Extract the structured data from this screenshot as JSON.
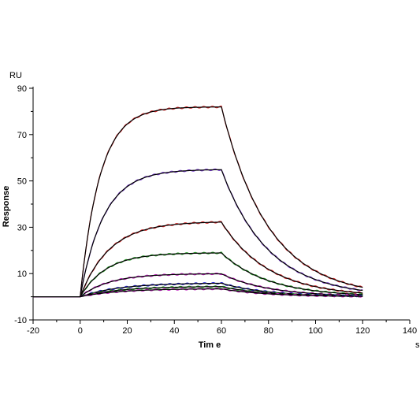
{
  "chart_data": {
    "type": "line",
    "title": "",
    "xlabel": "Tim e",
    "ylabel": "Response",
    "x_unit": "s",
    "y_unit": "RU",
    "xlim": [
      -20,
      140
    ],
    "ylim": [
      -10,
      90
    ],
    "x_ticks": [
      -20,
      0,
      20,
      40,
      60,
      80,
      100,
      120,
      140
    ],
    "y_ticks": [
      -10,
      10,
      30,
      50,
      70,
      90
    ],
    "grid": false,
    "legend": "none",
    "phases": {
      "association_start": 0,
      "dissociation_start": 60,
      "end": 120
    },
    "series": [
      {
        "plateau": 82,
        "k_on": 0.12,
        "k_off": 0.05,
        "color": "#d62728"
      },
      {
        "plateau": 55,
        "k_on": 0.1,
        "k_off": 0.05,
        "color": "#7a3fd0"
      },
      {
        "plateau": 32.5,
        "k_on": 0.08,
        "k_off": 0.05,
        "color": "#d62728"
      },
      {
        "plateau": 19,
        "k_on": 0.09,
        "k_off": 0.05,
        "color": "#2ca02c"
      },
      {
        "plateau": 10,
        "k_on": 0.08,
        "k_off": 0.05,
        "color": "#c21fc2"
      },
      {
        "plateau": 6,
        "k_on": 0.06,
        "k_off": 0.05,
        "color": "#2a2ad0"
      },
      {
        "plateau": 4.5,
        "k_on": 0.06,
        "k_off": 0.05,
        "color": "#2ca02c"
      },
      {
        "plateau": 3.5,
        "k_on": 0.06,
        "k_off": 0.05,
        "color": "#c21fc2"
      }
    ],
    "fit_color": "#000000"
  }
}
